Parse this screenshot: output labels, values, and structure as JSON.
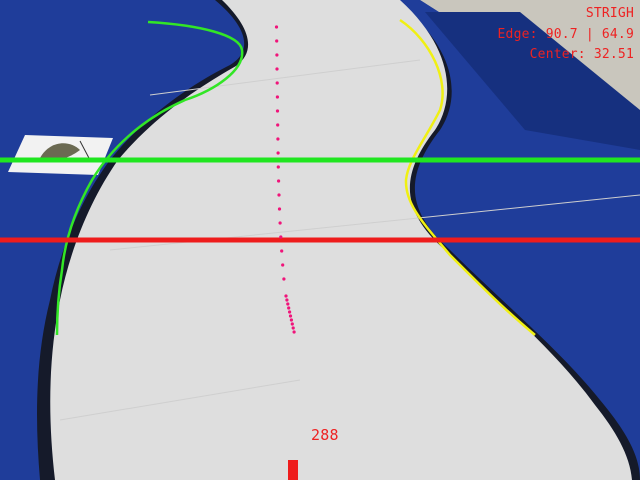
{
  "colors": {
    "floor": "#c9c6bd",
    "mat_blue": "#1f3d9a",
    "mat_blue_dark": "#16307f",
    "track": "#dedede",
    "track_border": "#151a2a",
    "left_edge": "#32e626",
    "right_edge": "#f0f013",
    "upper_scanline": "#20e620",
    "lower_scanline": "#ee1c1c",
    "trajectory": "#f0147a",
    "hud_text": "#ee2222",
    "target_marker": "#ee1c1c"
  },
  "hud": {
    "mode": "STRIGH",
    "edge": "Edge: 90.7 | 64.9",
    "center": "Center: 32.51",
    "target": "288"
  },
  "icons": {
    "track_sticker": "card-sticker-icon"
  }
}
